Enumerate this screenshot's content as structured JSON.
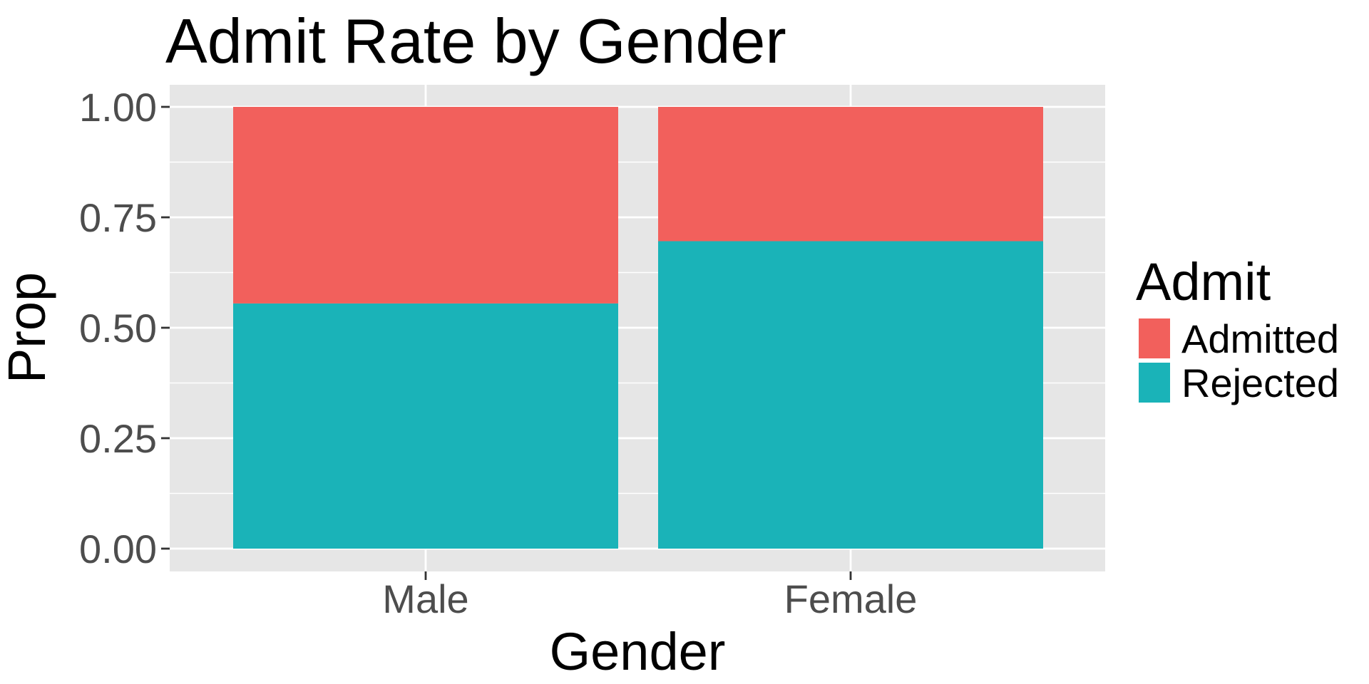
{
  "chart_data": {
    "type": "bar",
    "stacked": true,
    "title": "Admit Rate by Gender",
    "xlabel": "Gender",
    "ylabel": "Prop",
    "categories": [
      "Male",
      "Female"
    ],
    "ylim": [
      0,
      1
    ],
    "yticks": [
      "0.00",
      "0.25",
      "0.50",
      "0.75",
      "1.00"
    ],
    "ytick_values": [
      0,
      0.25,
      0.5,
      0.75,
      1.0
    ],
    "grid": true,
    "legend": {
      "title": "Admit",
      "position": "right"
    },
    "series": [
      {
        "name": "Rejected",
        "values": [
          0.555,
          0.696
        ],
        "color": "#1ab3b8"
      },
      {
        "name": "Admitted",
        "values": [
          0.445,
          0.304
        ],
        "color": "#f2605c"
      }
    ],
    "colors": {
      "panel_background": "#e6e6e6",
      "grid": "#ffffff",
      "tick_text": "#4d4d4d"
    }
  }
}
